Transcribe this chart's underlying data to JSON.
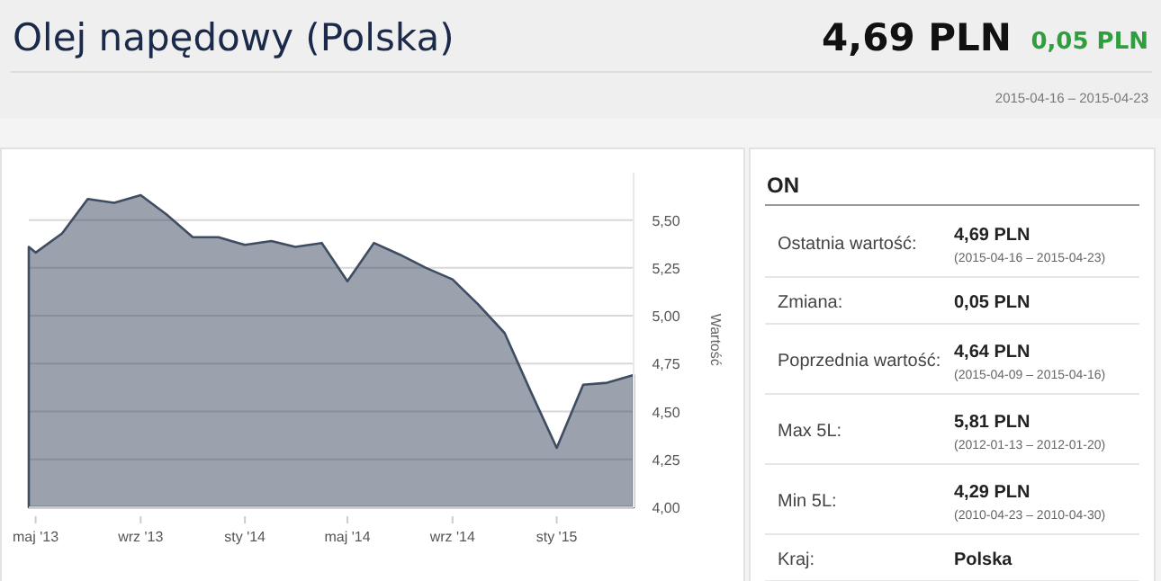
{
  "chart_data": [
    {
      "type": "area",
      "title": "Olej napędowy (Polska)",
      "annotations": [
        "4,69 PLN",
        "0,05 PLN",
        "2015-04-16 – 2015-04-23"
      ],
      "ylabel": "Wartość",
      "x": [
        "2013-04-23",
        "2013-05-01",
        "2013-06-01",
        "2013-07-01",
        "2013-08-01",
        "2013-09-01",
        "2013-10-01",
        "2013-11-01",
        "2013-12-01",
        "2014-01-01",
        "2014-02-01",
        "2014-03-01",
        "2014-04-01",
        "2014-05-01",
        "2014-06-01",
        "2014-07-01",
        "2014-08-01",
        "2014-09-01",
        "2014-10-01",
        "2014-11-01",
        "2014-12-01",
        "2015-01-01",
        "2015-02-01",
        "2015-03-01",
        "2015-04-01"
      ],
      "series": [
        {
          "color": "#3f4d63",
          "values": [
            5.36,
            5.33,
            5.43,
            5.61,
            5.59,
            5.63,
            5.53,
            5.41,
            5.41,
            5.37,
            5.39,
            5.36,
            5.38,
            5.18,
            5.38,
            5.32,
            5.25,
            5.19,
            5.06,
            4.91,
            4.61,
            4.31,
            4.64,
            4.65,
            4.69
          ]
        }
      ],
      "xlim": [
        "2013-04-23",
        "2015-04-01"
      ],
      "xticks": [
        {
          "value": "2013-05-01",
          "label": "maj '13"
        },
        {
          "value": "2013-09-01",
          "label": "wrz '13"
        },
        {
          "value": "2014-01-01",
          "label": "sty '14"
        },
        {
          "value": "2014-05-01",
          "label": "maj '14"
        },
        {
          "value": "2014-09-01",
          "label": "wrz '14"
        },
        {
          "value": "2015-01-01",
          "label": "sty '15"
        }
      ],
      "ylim": [
        4,
        5.75
      ],
      "yticks": [
        {
          "value": 4,
          "label": "4,00"
        },
        {
          "value": 4.25,
          "label": "4,25"
        },
        {
          "value": 4.5,
          "label": "4,50"
        },
        {
          "value": 4.75,
          "label": "4,75"
        },
        {
          "value": 5,
          "label": "5,00"
        },
        {
          "value": 5.25,
          "label": "5,25"
        },
        {
          "value": 5.5,
          "label": "5,50"
        }
      ],
      "grid": "y"
    },
    {
      "type": "other",
      "title": "ON",
      "annotations": [
        "Ostatnia wartość:",
        "4,69 PLN",
        "(2015-04-16 – 2015-04-23)",
        "Zmiana:",
        "0,05 PLN",
        "Poprzednia wartość:",
        "4,64 PLN",
        "(2015-04-09 – 2015-04-16)",
        "Max 5L:",
        "5,81 PLN",
        "(2012-01-13 – 2012-01-20)",
        "Min 5L:",
        "4,29 PLN",
        "(2010-04-23 – 2010-04-30)",
        "Kraj:",
        "Polska"
      ]
    }
  ]
}
